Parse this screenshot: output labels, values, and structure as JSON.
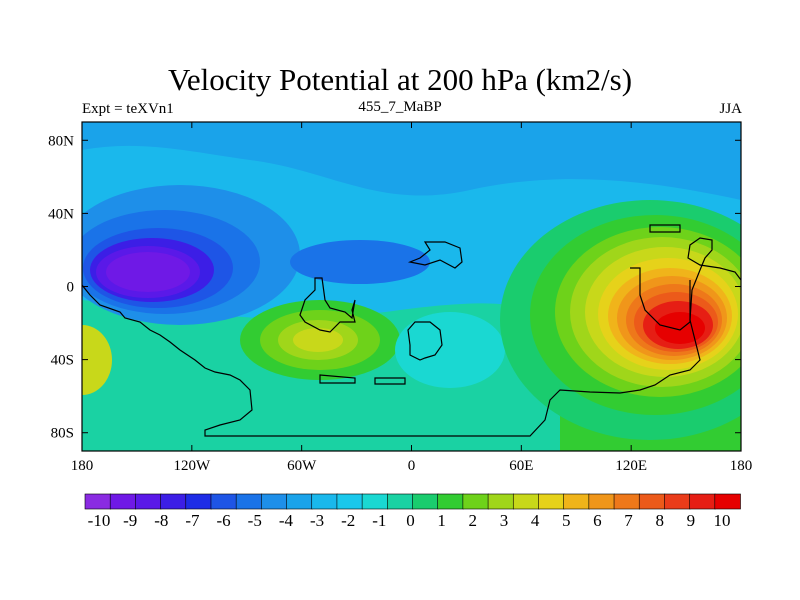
{
  "chart_data": {
    "type": "heatmap",
    "title": "Velocity Potential at 200 hPa (km2/s)",
    "left_string": "Expt = teXVn1",
    "center_string": "455_7_MaBP",
    "right_string": "JJA",
    "xlabel": "",
    "ylabel": "",
    "xlim": [
      -180,
      180
    ],
    "ylim": [
      -90,
      90
    ],
    "x_ticks": [
      {
        "value": -180,
        "label": "180"
      },
      {
        "value": -120,
        "label": "120W"
      },
      {
        "value": -60,
        "label": "60W"
      },
      {
        "value": 0,
        "label": "0"
      },
      {
        "value": 60,
        "label": "60E"
      },
      {
        "value": 120,
        "label": "120E"
      },
      {
        "value": 180,
        "label": "180"
      }
    ],
    "y_ticks": [
      {
        "value": 80,
        "label": "80N"
      },
      {
        "value": 40,
        "label": "40N"
      },
      {
        "value": 0,
        "label": "0"
      },
      {
        "value": -40,
        "label": "40S"
      },
      {
        "value": -80,
        "label": "80S"
      }
    ],
    "colorbar": {
      "levels": [
        -10,
        -9,
        -8,
        -7,
        -6,
        -5,
        -4,
        -3,
        -2,
        -1,
        0,
        1,
        2,
        3,
        4,
        5,
        6,
        7,
        8,
        9,
        10
      ],
      "labels": [
        "-10",
        "-9",
        "-8",
        "-7",
        "-6",
        "-5",
        "-4",
        "-3",
        "-2",
        "-1",
        "0",
        "1",
        "2",
        "3",
        "4",
        "5",
        "6",
        "7",
        "8",
        "9",
        "10"
      ],
      "colors": [
        "#8a2be2",
        "#6f19e6",
        "#5a19e8",
        "#3c1ee6",
        "#1e2ce6",
        "#1e55e6",
        "#1a73e8",
        "#1e8fe9",
        "#1aa3ea",
        "#1ab8ec",
        "#1ac8ec",
        "#1ad8d2",
        "#1ad2a3",
        "#1acc6e",
        "#32cc32",
        "#6ed21a",
        "#a0d61a",
        "#c8d81a",
        "#e6d21a",
        "#f0b41a",
        "#f0961a",
        "#ee781a",
        "#ec5a1a",
        "#ea3c1a",
        "#e61e14",
        "#e60000"
      ]
    },
    "fields": [
      {
        "name": "strong negative center",
        "lon": -150,
        "lat": 10,
        "value": -9.5
      },
      {
        "name": "Pacific negative belt",
        "lon": -120,
        "lat": 30,
        "value": -5
      },
      {
        "name": "North Atlantic negative",
        "lon": -30,
        "lat": 10,
        "value": -3
      },
      {
        "name": "South America positive",
        "lon": -40,
        "lat": -30,
        "value": 5
      },
      {
        "name": "Asian positive center",
        "lon": 135,
        "lat": -20,
        "value": 10
      },
      {
        "name": "South Atlantic weak",
        "lon": 30,
        "lat": -35,
        "value": 1
      },
      {
        "name": "Dateline west edge positive",
        "lon": -178,
        "lat": -35,
        "value": 6
      }
    ]
  }
}
